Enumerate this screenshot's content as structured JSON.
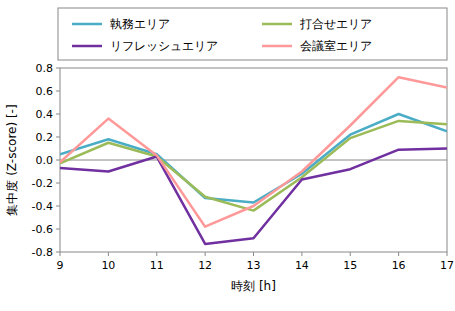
{
  "chart_data": {
    "type": "line",
    "x_label": "時刻 [h]",
    "y_label": "集中度 (Z-score) [-]",
    "x": [
      9,
      10,
      11,
      12,
      13,
      14,
      15,
      16,
      17
    ],
    "xlim": [
      9,
      17
    ],
    "xticks": [
      9,
      10,
      11,
      12,
      13,
      14,
      15,
      16,
      17
    ],
    "ylim": [
      -0.8,
      0.8
    ],
    "yticks": [
      -0.8,
      -0.6,
      -0.4,
      -0.2,
      {
        "value": 0,
        "label": "0.0"
      },
      0.2,
      0.4,
      0.6,
      0.8
    ],
    "grid": false,
    "legend": "top",
    "series": [
      {
        "name": "執務エリア",
        "color": "#4bacc6",
        "values": [
          0.05,
          0.18,
          0.05,
          -0.33,
          -0.37,
          -0.12,
          0.22,
          0.4,
          0.25
        ]
      },
      {
        "name": "打合せエリア",
        "color": "#9bbb59",
        "values": [
          -0.03,
          0.15,
          0.03,
          -0.32,
          -0.44,
          -0.15,
          0.19,
          0.34,
          0.31
        ]
      },
      {
        "name": "リフレッシュエリア",
        "color": "#7030a0",
        "values": [
          -0.07,
          -0.1,
          0.03,
          -0.73,
          -0.68,
          -0.17,
          -0.08,
          0.09,
          0.1
        ]
      },
      {
        "name": "会議室エリア",
        "color": "#ff9999",
        "values": [
          -0.02,
          0.36,
          0.04,
          -0.58,
          -0.4,
          -0.1,
          0.3,
          0.72,
          0.63
        ]
      }
    ]
  }
}
